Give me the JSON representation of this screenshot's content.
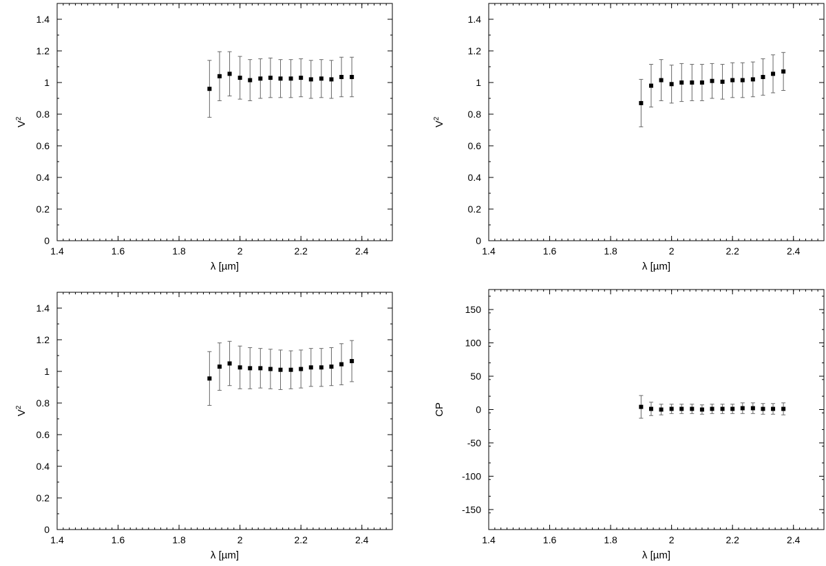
{
  "chart_data": [
    {
      "type": "scatter",
      "xlabel": "λ [µm]",
      "ylabel_base": "V",
      "ylabel_sup": "2",
      "xlim": [
        1.4,
        2.5
      ],
      "ylim": [
        0,
        1.5
      ],
      "xticks": [
        1.4,
        1.6,
        1.8,
        2,
        2.2,
        2.4
      ],
      "xtick_labels": [
        "1.4",
        "1.6",
        "1.8",
        "2",
        "2.2",
        "2.4"
      ],
      "yticks": [
        0,
        0.2,
        0.4,
        0.6,
        0.8,
        1,
        1.2,
        1.4
      ],
      "ytick_labels": [
        "0",
        "0.2",
        "0.4",
        "0.6",
        "0.8",
        "1",
        "1.2",
        "1.4"
      ],
      "grid": false,
      "series": [
        {
          "x": [
            1.9,
            1.933,
            1.966,
            2.0,
            2.033,
            2.067,
            2.1,
            2.133,
            2.167,
            2.2,
            2.233,
            2.267,
            2.3,
            2.333,
            2.367
          ],
          "y": [
            0.96,
            1.04,
            1.055,
            1.03,
            1.015,
            1.025,
            1.03,
            1.025,
            1.025,
            1.03,
            1.02,
            1.025,
            1.02,
            1.035,
            1.035
          ],
          "error": [
            0.18,
            0.155,
            0.14,
            0.135,
            0.13,
            0.125,
            0.125,
            0.12,
            0.12,
            0.12,
            0.12,
            0.12,
            0.12,
            0.125,
            0.125
          ]
        }
      ]
    },
    {
      "type": "scatter",
      "xlabel": "λ [µm]",
      "ylabel_base": "V",
      "ylabel_sup": "2",
      "xlim": [
        1.4,
        2.5
      ],
      "ylim": [
        0,
        1.5
      ],
      "xticks": [
        1.4,
        1.6,
        1.8,
        2,
        2.2,
        2.4
      ],
      "xtick_labels": [
        "1.4",
        "1.6",
        "1.8",
        "2",
        "2.2",
        "2.4"
      ],
      "yticks": [
        0,
        0.2,
        0.4,
        0.6,
        0.8,
        1,
        1.2,
        1.4
      ],
      "ytick_labels": [
        "0",
        "0.2",
        "0.4",
        "0.6",
        "0.8",
        "1",
        "1.2",
        "1.4"
      ],
      "grid": false,
      "series": [
        {
          "x": [
            1.9,
            1.933,
            1.966,
            2.0,
            2.033,
            2.067,
            2.1,
            2.133,
            2.167,
            2.2,
            2.233,
            2.267,
            2.3,
            2.333,
            2.367
          ],
          "y": [
            0.87,
            0.98,
            1.015,
            0.99,
            1.0,
            1.0,
            1.0,
            1.01,
            1.005,
            1.015,
            1.015,
            1.02,
            1.035,
            1.055,
            1.07
          ],
          "error": [
            0.15,
            0.135,
            0.13,
            0.12,
            0.12,
            0.115,
            0.115,
            0.11,
            0.11,
            0.11,
            0.11,
            0.11,
            0.115,
            0.12,
            0.12
          ]
        }
      ]
    },
    {
      "type": "scatter",
      "xlabel": "λ [µm]",
      "ylabel_base": "V",
      "ylabel_sup": "2",
      "xlim": [
        1.4,
        2.5
      ],
      "ylim": [
        0,
        1.5
      ],
      "xticks": [
        1.4,
        1.6,
        1.8,
        2,
        2.2,
        2.4
      ],
      "xtick_labels": [
        "1.4",
        "1.6",
        "1.8",
        "2",
        "2.2",
        "2.4"
      ],
      "yticks": [
        0,
        0.2,
        0.4,
        0.6,
        0.8,
        1,
        1.2,
        1.4
      ],
      "ytick_labels": [
        "0",
        "0.2",
        "0.4",
        "0.6",
        "0.8",
        "1",
        "1.2",
        "1.4"
      ],
      "grid": false,
      "series": [
        {
          "x": [
            1.9,
            1.933,
            1.966,
            2.0,
            2.033,
            2.067,
            2.1,
            2.133,
            2.167,
            2.2,
            2.233,
            2.267,
            2.3,
            2.333,
            2.367
          ],
          "y": [
            0.955,
            1.03,
            1.05,
            1.025,
            1.02,
            1.02,
            1.015,
            1.01,
            1.01,
            1.015,
            1.025,
            1.025,
            1.03,
            1.045,
            1.065
          ],
          "error": [
            0.17,
            0.15,
            0.14,
            0.135,
            0.13,
            0.125,
            0.125,
            0.125,
            0.12,
            0.12,
            0.12,
            0.12,
            0.12,
            0.13,
            0.13
          ]
        }
      ]
    },
    {
      "type": "scatter",
      "xlabel": "λ [µm]",
      "ylabel_base": "CP",
      "ylabel_sup": "",
      "xlim": [
        1.4,
        2.5
      ],
      "ylim": [
        -180,
        180
      ],
      "xticks": [
        1.4,
        1.6,
        1.8,
        2,
        2.2,
        2.4
      ],
      "xtick_labels": [
        "1.4",
        "1.6",
        "1.8",
        "2",
        "2.2",
        "2.4"
      ],
      "yticks": [
        -150,
        -100,
        -50,
        0,
        50,
        100,
        150
      ],
      "ytick_labels": [
        "-150",
        "-100",
        "-50",
        "0",
        "50",
        "100",
        "150"
      ],
      "grid": false,
      "series": [
        {
          "x": [
            1.9,
            1.933,
            1.966,
            2.0,
            2.033,
            2.067,
            2.1,
            2.133,
            2.167,
            2.2,
            2.233,
            2.267,
            2.3,
            2.333,
            2.367
          ],
          "y": [
            4,
            1,
            0,
            1,
            1,
            1,
            0,
            1,
            1,
            1,
            2,
            2,
            1,
            1,
            1
          ],
          "error": [
            17,
            10,
            8,
            7,
            7,
            7,
            7,
            7,
            7,
            7,
            8,
            8,
            8,
            8,
            9
          ]
        }
      ]
    }
  ]
}
